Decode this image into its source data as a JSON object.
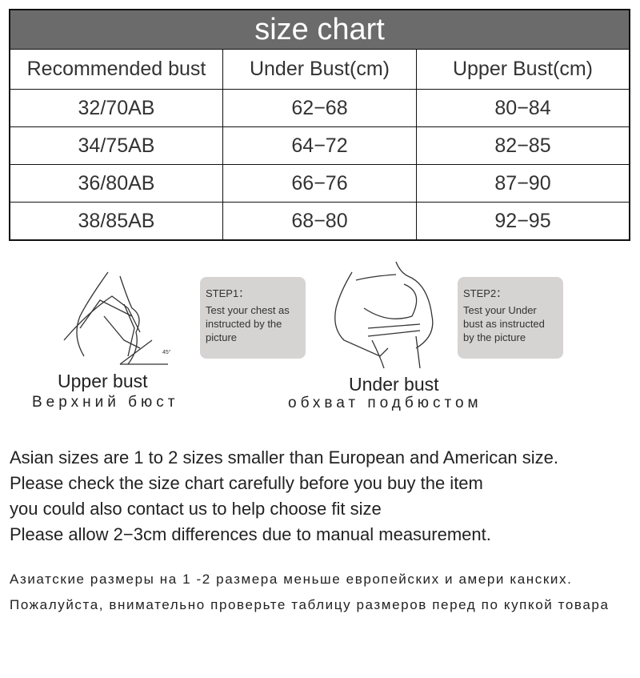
{
  "table": {
    "title": "size chart",
    "headers": [
      "Recommended bust",
      "Under Bust(cm)",
      "Upper Bust(cm)"
    ],
    "rows": [
      [
        "32/70AB",
        "62−68",
        "80−84"
      ],
      [
        "34/75AB",
        "64−72",
        "82−85"
      ],
      [
        "36/80AB",
        "66−76",
        "87−90"
      ],
      [
        "38/85AB",
        "68−80",
        "92−95"
      ]
    ]
  },
  "steps": [
    {
      "label": "STEP1：",
      "text": "Test your chest as instructed by the picture",
      "caption": "Upper bust",
      "caption_ru": "Верхний бюст",
      "angle": "45°"
    },
    {
      "label": "STEP2：",
      "text": "Test your Under bust as instructed by the picture",
      "caption": "Under bust",
      "caption_ru": "обхват подбюстом"
    }
  ],
  "notes_en": [
    "Asian sizes are 1 to 2 sizes smaller than European and American size.",
    "Please check the size chart carefully before you buy the item",
    "you could also contact us to help choose fit size",
    "Please allow 2−3cm differences due to manual measurement."
  ],
  "notes_ru": [
    "Азиатские  размеры на 1 -2 размера меньше европейских и амери канских.",
    "Пожалуйста, внимательно  проверьте таблицу размеров перед  по купкой товара"
  ]
}
